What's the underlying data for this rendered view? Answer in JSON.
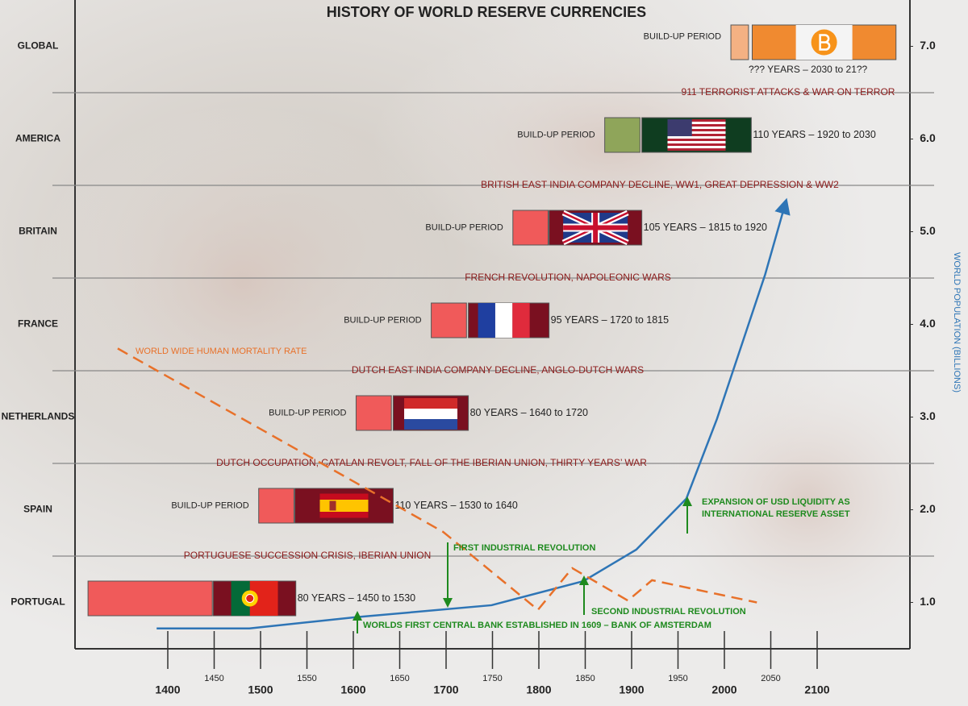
{
  "chart_data": {
    "type": "timeline",
    "title": "HISTORY OF WORLD RESERVE CURRENCIES",
    "categories": [
      "GLOBAL",
      "AMERICA",
      "BRITAIN",
      "FRANCE",
      "NETHERLANDS",
      "SPAIN",
      "PORTUGAL"
    ],
    "periods": [
      {
        "buildup_label": "BUILD-UP PERIOD",
        "buildup": [
          2007,
          2026
        ],
        "reign": [
          2030,
          2185
        ],
        "text": "??? YEARS – 2030 to 21??",
        "buildup_color": "#f4b183",
        "color": "#f08a30"
      },
      {
        "buildup_label": "BUILD-UP PERIOD",
        "buildup": [
          1871,
          1909
        ],
        "reign": [
          1911,
          2029
        ],
        "text": "110 YEARS – 1920 to 2030",
        "buildup_color": "#8fa55a",
        "color": "#0f3d20"
      },
      {
        "buildup_label": "BUILD-UP PERIOD",
        "buildup": [
          1772,
          1810
        ],
        "reign": [
          1811,
          1911
        ],
        "text": "105 YEARS – 1815 to 1920",
        "buildup_color": "#f05a5a",
        "color": "#7a1020"
      },
      {
        "buildup_label": "BUILD-UP PERIOD",
        "buildup": [
          1684,
          1722
        ],
        "reign": [
          1724,
          1811
        ],
        "text": "95 YEARS – 1720 to 1815",
        "buildup_color": "#f05a5a",
        "color": "#7a1020"
      },
      {
        "buildup_label": "BUILD-UP PERIOD",
        "buildup": [
          1603,
          1641
        ],
        "reign": [
          1643,
          1724
        ],
        "text": "80 YEARS – 1640 to 1720",
        "buildup_color": "#f05a5a",
        "color": "#7a1020"
      },
      {
        "buildup_label": "BUILD-UP PERIOD",
        "buildup": [
          1498,
          1536
        ],
        "reign": [
          1537,
          1643
        ],
        "text": "110 YEARS – 1530 to 1640",
        "buildup_color": "#f05a5a",
        "color": "#7a1020"
      },
      {
        "buildup": [
          1314,
          1448
        ],
        "reign": [
          1449,
          1538
        ],
        "text": "80 YEARS – 1450 to 1530",
        "buildup_color": "#f05a5a",
        "color": "#7a1020"
      }
    ],
    "events": [
      "911 TERRORIST ATTACKS & WAR ON TERROR",
      "BRITISH EAST INDIA COMPANY DECLINE, WW1, GREAT DEPRESSION & WW2",
      "FRENCH REVOLUTION, NAPOLEONIC WARS",
      "DUTCH EAST INDIA COMPANY DECLINE, ANGLO-DUTCH WARS",
      "DUTCH OCCUPATION, CATALAN REVOLT, FALL OF THE IBERIAN UNION, THIRTY YEARS’ WAR",
      "PORTUGUESE SUCCESSION CRISIS, IBERIAN UNION"
    ],
    "annotations": [
      [
        "FIRST INDUSTRIAL REVOLUTION"
      ],
      [
        "SECOND INDUSTRIAL REVOLUTION"
      ],
      [
        "WORLDS FIRST CENTRAL BANK ESTABLISHED IN 1609 – BANK OF AMSTERDAM"
      ],
      [
        "EXPANSION OF USD LIQUIDITY AS",
        "INTERNATIONAL RESERVE ASSET"
      ]
    ],
    "xlim": [
      1300,
      2200
    ],
    "xticks": [
      1400,
      1450,
      1500,
      1550,
      1600,
      1650,
      1700,
      1750,
      1800,
      1850,
      1900,
      1950,
      2000,
      2050,
      2100
    ],
    "y2label": "WORLD POPULATION (BILLIONS)",
    "y2lim": [
      0.5,
      7.5
    ],
    "y2ticks": [
      {
        "value": 1,
        "label": "1.0"
      },
      {
        "value": 2,
        "label": "2.0"
      },
      {
        "value": 3,
        "label": "3.0"
      },
      {
        "value": 4,
        "label": "4.0"
      },
      {
        "value": 5,
        "label": "5.0"
      },
      {
        "value": 6,
        "label": "6.0"
      },
      {
        "value": 7,
        "label": "7.0"
      }
    ],
    "series": [
      {
        "axis": "y2",
        "color": "#2e75b6",
        "x": [
          1388,
          1488,
          1602,
          1749,
          1848,
          1905,
          1959,
          1992,
          2018,
          2044,
          2065
        ],
        "values": [
          0.72,
          0.72,
          0.84,
          0.97,
          1.23,
          1.57,
          2.12,
          2.98,
          3.76,
          4.54,
          5.28
        ]
      },
      {
        "name": "WORLD WIDE HUMAN MORTALITY RATE",
        "axis": "y2",
        "color": "#e8712a",
        "dashed": true,
        "x": [
          1346,
          1697,
          1799,
          1836,
          1896,
          1922,
          2035
        ],
        "values": [
          3.74,
          1.76,
          0.92,
          1.37,
          1.02,
          1.24,
          1.0
        ]
      }
    ]
  }
}
